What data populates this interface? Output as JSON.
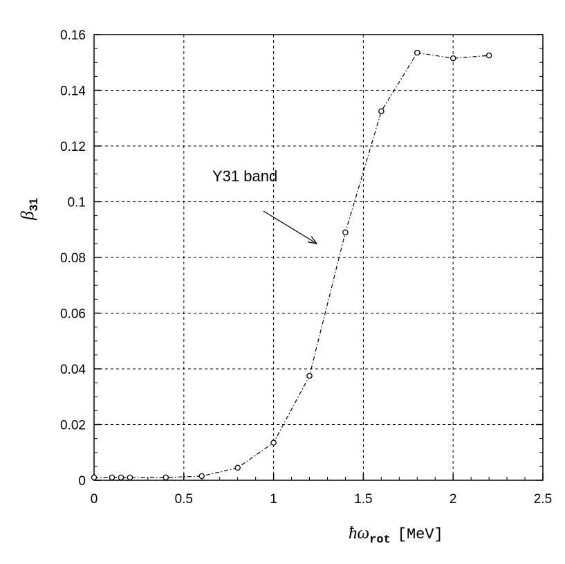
{
  "chart_data": {
    "type": "line",
    "title": "",
    "xlabel": {
      "main": "ħω",
      "sub": "rot",
      "unit": "[MeV]"
    },
    "ylabel": {
      "main": "β",
      "sub": "31"
    },
    "xlim": [
      0,
      2.5
    ],
    "ylim": [
      0,
      0.16
    ],
    "xticks": [
      "0",
      "0.5",
      "1",
      "1.5",
      "2",
      "2.5"
    ],
    "yticks": [
      "0",
      "0.02",
      "0.04",
      "0.06",
      "0.08",
      "0.1",
      "0.12",
      "0.14",
      "0.16"
    ],
    "grid": true,
    "series": [
      {
        "x": [
          0,
          0.1,
          0.15,
          0.2,
          0.4,
          0.6,
          0.8,
          1.0,
          1.2,
          1.4,
          1.6,
          1.8,
          2.0,
          2.2
        ],
        "y": [
          0.001,
          0.001,
          0.001,
          0.001,
          0.001,
          0.0015,
          0.0045,
          0.0135,
          0.0375,
          0.089,
          0.1325,
          0.1535,
          0.1515,
          0.1525
        ]
      }
    ],
    "annotations": [
      {
        "text": "Y31 band",
        "arrow_target": {
          "x": 1.24,
          "y": 0.085
        }
      }
    ]
  }
}
